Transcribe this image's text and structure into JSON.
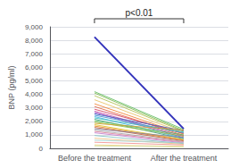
{
  "chart_data": {
    "type": "line",
    "categories": [
      "Before the treatment",
      "After the treatment"
    ],
    "ylabel": "BNP (pg/ml)",
    "ylim": [
      0,
      9000
    ],
    "yticks": [
      0,
      1000,
      2000,
      3000,
      4000,
      5000,
      6000,
      7000,
      8000,
      9000
    ],
    "grid": true,
    "annotation": "p<0.01",
    "series": [
      {
        "values": [
          4200,
          1400
        ],
        "color": "#5cb85c"
      },
      {
        "values": [
          4100,
          1300
        ],
        "color": "#7cb94e"
      },
      {
        "values": [
          3900,
          1250
        ],
        "color": "#b0c050"
      },
      {
        "values": [
          3600,
          1150
        ],
        "color": "#e8c060"
      },
      {
        "values": [
          3300,
          1050
        ],
        "color": "#f08030"
      },
      {
        "values": [
          3100,
          950
        ],
        "color": "#e06040"
      },
      {
        "values": [
          2900,
          1100
        ],
        "color": "#d04060"
      },
      {
        "values": [
          2750,
          900
        ],
        "color": "#c040a0"
      },
      {
        "values": [
          2650,
          800
        ],
        "color": "#9040c0"
      },
      {
        "values": [
          2550,
          1300
        ],
        "color": "#4060c0"
      },
      {
        "values": [
          2450,
          1150
        ],
        "color": "#4090d0"
      },
      {
        "values": [
          2350,
          750
        ],
        "color": "#40b0e0"
      },
      {
        "values": [
          2250,
          1200
        ],
        "color": "#40c0c0"
      },
      {
        "values": [
          2150,
          700
        ],
        "color": "#40a080"
      },
      {
        "values": [
          2050,
          1000
        ],
        "color": "#60c060"
      },
      {
        "values": [
          1950,
          900
        ],
        "color": "#90c040"
      },
      {
        "values": [
          1850,
          1350
        ],
        "color": "#d0a030"
      },
      {
        "values": [
          1750,
          650
        ],
        "color": "#e0c020"
      },
      {
        "values": [
          1650,
          600
        ],
        "color": "#e08020"
      },
      {
        "values": [
          1550,
          550
        ],
        "color": "#c06040"
      },
      {
        "values": [
          1450,
          800
        ],
        "color": "#8080a0"
      },
      {
        "values": [
          1350,
          500
        ],
        "color": "#a0a0a0"
      },
      {
        "values": [
          1250,
          450
        ],
        "color": "#e080a0"
      },
      {
        "values": [
          1150,
          400
        ],
        "color": "#c080d0"
      },
      {
        "values": [
          950,
          350
        ],
        "color": "#80c0c0"
      },
      {
        "values": [
          750,
          300
        ],
        "color": "#f0c080"
      },
      {
        "values": [
          450,
          250
        ],
        "color": "#f09090"
      },
      {
        "values": [
          250,
          150
        ],
        "color": "#f0d080"
      },
      {
        "values": [
          180,
          100
        ],
        "color": "#d0e0a0"
      },
      {
        "values": [
          600,
          400
        ],
        "color": "#a0d0d0"
      },
      {
        "values": [
          8250,
          1450
        ],
        "color": "#3333bb"
      }
    ]
  }
}
